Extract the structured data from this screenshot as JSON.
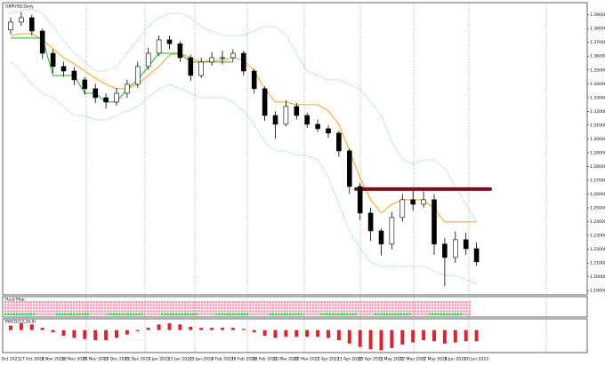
{
  "chart_data": {
    "type": "candlestick",
    "title": "GBPUSD,Daily",
    "categories": [
      "Oct 2021",
      null,
      "27 Oct 2021",
      null,
      "8 Nov 2021",
      null,
      "18 Nov 2021",
      null,
      "30 Nov 2021",
      null,
      "10 Dec 2021",
      null,
      "22 Dec 2021",
      null,
      "3 Jan 2022",
      null,
      "13 Jan 2022",
      null,
      "25 Jan 2022",
      null,
      "4 Feb 2022",
      null,
      "16 Feb 2022",
      null,
      "28 Feb 2022",
      null,
      "10 Mar 2022",
      null,
      "22 Mar 2022",
      null,
      "1 Apr 2022",
      null,
      "13 Apr 2022",
      null,
      "25 Apr 2022",
      null,
      "5 May 2022",
      null,
      "17 May 2022",
      null,
      "27 May 2022",
      null,
      "8 Jun 2022",
      null,
      "20 Jun 2022"
    ],
    "open": [
      1.379,
      1.3847,
      1.3879,
      1.3782,
      1.3621,
      1.3525,
      1.3492,
      1.3428,
      1.3364,
      1.3299,
      1.3267,
      1.3331,
      1.3396,
      1.3525,
      1.3621,
      1.3718,
      1.369,
      1.3589,
      1.346,
      1.3557,
      1.3589,
      1.3589,
      1.3621,
      1.3492,
      1.3364,
      1.317,
      1.3106,
      1.3235,
      1.317,
      1.3106,
      1.3074,
      1.3042,
      1.2913,
      1.2655,
      1.2462,
      1.2333,
      1.2237,
      1.243,
      1.2559,
      1.2526,
      1.2559,
      1.2237,
      1.214,
      1.2269,
      1.2204
    ],
    "high": [
      1.388,
      1.392,
      1.39,
      1.38,
      1.365,
      1.356,
      1.352,
      1.345,
      1.34,
      1.333,
      1.337,
      1.343,
      1.356,
      1.366,
      1.375,
      1.375,
      1.371,
      1.361,
      1.359,
      1.363,
      1.364,
      1.365,
      1.364,
      1.351,
      1.338,
      1.32,
      1.328,
      1.326,
      1.319,
      1.314,
      1.31,
      1.306,
      1.293,
      1.268,
      1.25,
      1.235,
      1.247,
      1.26,
      1.263,
      1.262,
      1.26,
      1.228,
      1.233,
      1.232,
      1.225
    ],
    "low": [
      1.376,
      1.382,
      1.375,
      1.358,
      1.348,
      1.345,
      1.339,
      1.332,
      1.326,
      1.322,
      1.324,
      1.33,
      1.337,
      1.35,
      1.36,
      1.365,
      1.356,
      1.342,
      1.344,
      1.353,
      1.354,
      1.356,
      1.346,
      1.333,
      1.313,
      1.3,
      1.309,
      1.314,
      1.308,
      1.305,
      1.301,
      1.287,
      1.26,
      1.241,
      1.226,
      1.2155,
      1.22,
      1.24,
      1.248,
      1.25,
      1.216,
      1.1933,
      1.21,
      1.216,
      1.208
    ],
    "close": [
      1.3847,
      1.3879,
      1.3782,
      1.3621,
      1.3525,
      1.3492,
      1.3428,
      1.3364,
      1.3299,
      1.3267,
      1.3331,
      1.3396,
      1.3525,
      1.3621,
      1.3718,
      1.369,
      1.3589,
      1.346,
      1.3557,
      1.3589,
      1.3589,
      1.3621,
      1.3492,
      1.3364,
      1.317,
      1.3106,
      1.3235,
      1.317,
      1.3106,
      1.3074,
      1.3042,
      1.2913,
      1.2655,
      1.2462,
      1.2333,
      1.2237,
      1.243,
      1.2559,
      1.2526,
      1.2559,
      1.2237,
      1.214,
      1.2269,
      1.2204,
      1.2108
    ],
    "lines": [
      {
        "color": "#f7a21b",
        "style": "solid",
        "values": [
          1.375,
          1.3763,
          1.3763,
          1.3718,
          1.3653,
          1.3589,
          1.3544,
          1.3492,
          1.3441,
          1.3396,
          1.3364,
          1.3364,
          1.3396,
          1.346,
          1.3525,
          1.3608,
          1.3621,
          1.3589,
          1.3557,
          1.357,
          1.357,
          1.3589,
          1.357,
          1.3492,
          1.3364,
          1.3267,
          1.3267,
          1.3248,
          1.3248,
          1.3248,
          1.3203,
          1.3106,
          1.2913,
          1.272,
          1.2559,
          1.2462,
          1.2526,
          1.2559,
          1.2559,
          1.2559,
          1.2494,
          1.2398,
          1.2398,
          1.2398,
          1.2398
        ]
      },
      {
        "color": "#22b022",
        "style": "solid",
        "values": [
          1.3731,
          1.3731,
          1.3731,
          1.3731,
          1.346,
          1.346,
          1.346,
          1.3331,
          1.3331,
          1.3267,
          1.3267,
          1.3364,
          1.3428,
          1.3525,
          1.3621,
          1.3621,
          1.3621,
          1.3557,
          1.3557,
          1.3557,
          1.3557,
          1.3557,
          null,
          null,
          null,
          null,
          null,
          null,
          null,
          null,
          null,
          null,
          null,
          null,
          null,
          null,
          null,
          null,
          null,
          null,
          null,
          null,
          null,
          null,
          null
        ]
      },
      {
        "color": "#3cb8a0",
        "style": "dotted",
        "values": [
          1.3911,
          1.393,
          1.3943,
          1.3911,
          1.3814,
          1.3718,
          1.3621,
          1.3557,
          1.3492,
          1.3492,
          1.3525,
          1.3621,
          1.3718,
          1.3814,
          1.3879,
          1.3911,
          1.3911,
          1.3879,
          1.3814,
          1.3782,
          1.375,
          1.375,
          1.375,
          1.3782,
          1.3814,
          1.3814,
          1.375,
          1.3621,
          1.3492,
          1.346,
          1.3428,
          1.3428,
          1.3396,
          1.3364,
          1.3267,
          1.317,
          1.2977,
          1.2848,
          1.2816,
          1.2848,
          1.2848,
          1.2784,
          1.2655,
          1.2526,
          1.2398
        ]
      },
      {
        "color": "#3cb8a0",
        "style": "dotted",
        "values": [
          1.3557,
          1.3492,
          1.3396,
          1.3331,
          1.3299,
          1.3235,
          1.317,
          1.317,
          1.3138,
          1.3138,
          1.317,
          1.3203,
          1.3235,
          1.3299,
          1.3364,
          1.3396,
          1.3364,
          1.3331,
          1.3299,
          1.3299,
          1.3299,
          1.3267,
          1.3203,
          1.3106,
          1.2977,
          1.2913,
          1.2913,
          1.2881,
          1.2881,
          1.2848,
          1.272,
          1.2526,
          1.2333,
          1.2204,
          1.2108,
          1.2075,
          1.2075,
          1.2075,
          1.2075,
          1.2075,
          1.2043,
          1.2011,
          1.2011,
          1.1979,
          1.1947
        ]
      }
    ],
    "level": 1.2636,
    "level_color": "#7b0f1e",
    "ylim": [
      1.1869,
      1.3988
    ],
    "yticks": [
      {
        "value": 1.19,
        "label": "1.19000"
      },
      {
        "value": 1.2,
        "label": "1.20000"
      },
      {
        "value": 1.21,
        "label": "1.21000"
      },
      {
        "value": 1.22,
        "label": "1.22000"
      },
      {
        "value": 1.23,
        "label": "1.23000"
      },
      {
        "value": 1.24,
        "label": "1.24000"
      },
      {
        "value": 1.25,
        "label": "1.25000"
      },
      {
        "value": 1.26,
        "label": "1.26000"
      },
      {
        "value": 1.27,
        "label": "1.27000"
      },
      {
        "value": 1.28,
        "label": "1.28000"
      },
      {
        "value": 1.29,
        "label": "1.29000"
      },
      {
        "value": 1.3,
        "label": "1.30000"
      },
      {
        "value": 1.31,
        "label": "1.31000"
      },
      {
        "value": 1.32,
        "label": "1.32000"
      },
      {
        "value": 1.33,
        "label": "1.33000"
      },
      {
        "value": 1.34,
        "label": "1.34000"
      },
      {
        "value": 1.35,
        "label": "1.35000"
      },
      {
        "value": 1.36,
        "label": "1.36000"
      },
      {
        "value": 1.37,
        "label": "1.37000"
      },
      {
        "value": 1.38,
        "label": "1.38000"
      },
      {
        "value": 1.39,
        "label": "1.39000"
      }
    ],
    "grid": false,
    "heatmap_title": "Heat Map",
    "osc_title": "MACD(12,26,9)",
    "osc_color": "#d9262e",
    "osc_ylim": [
      -0.02,
      0.01
    ],
    "osc": [
      0.004,
      0.006,
      0.005,
      0.002,
      -0.002,
      -0.005,
      -0.007,
      -0.008,
      -0.009,
      -0.009,
      -0.007,
      -0.004,
      -0.001,
      0.002,
      0.005,
      0.006,
      0.005,
      0.003,
      0.002,
      0.002,
      0.002,
      0.002,
      0.001,
      -0.002,
      -0.005,
      -0.007,
      -0.006,
      -0.006,
      -0.006,
      -0.006,
      -0.007,
      -0.009,
      -0.012,
      -0.015,
      -0.017,
      -0.018,
      -0.016,
      -0.013,
      -0.011,
      -0.009,
      -0.01,
      -0.012,
      -0.011,
      -0.01,
      -0.01
    ]
  }
}
